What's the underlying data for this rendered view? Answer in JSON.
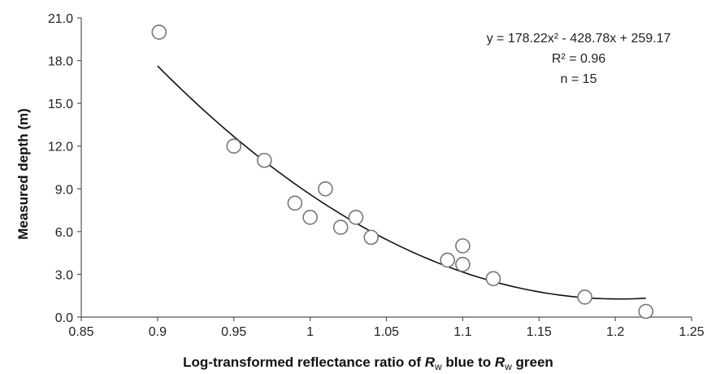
{
  "chart_data": {
    "type": "scatter",
    "title": "",
    "xlabel": {
      "prefix": "Log-transformed reflectance ratio of ",
      "r1": "R",
      "sub1": "w",
      "mid": " blue to ",
      "r2": "R",
      "sub2": "w",
      "suffix": " green"
    },
    "ylabel": "Measured depth (m)",
    "xlim": [
      0.85,
      1.25
    ],
    "ylim": [
      0,
      21
    ],
    "x_ticks": [
      "0.85",
      "0.9",
      "0.95",
      "1",
      "1.05",
      "1.1",
      "1.15",
      "1.2",
      "1.25"
    ],
    "y_ticks": [
      "0.0",
      "3.0",
      "6.0",
      "9.0",
      "12.0",
      "15.0",
      "18.0",
      "21.0"
    ],
    "grid": false,
    "legend": "none",
    "series": [
      {
        "marker": "open-circle",
        "points": [
          {
            "x": 0.901,
            "y": 20.0
          },
          {
            "x": 0.95,
            "y": 12.0
          },
          {
            "x": 0.97,
            "y": 11.0
          },
          {
            "x": 0.99,
            "y": 8.0
          },
          {
            "x": 1.0,
            "y": 7.0
          },
          {
            "x": 1.01,
            "y": 9.0
          },
          {
            "x": 1.02,
            "y": 6.3
          },
          {
            "x": 1.03,
            "y": 7.0
          },
          {
            "x": 1.04,
            "y": 5.6
          },
          {
            "x": 1.09,
            "y": 4.0
          },
          {
            "x": 1.1,
            "y": 5.0
          },
          {
            "x": 1.1,
            "y": 3.7
          },
          {
            "x": 1.12,
            "y": 2.7
          },
          {
            "x": 1.18,
            "y": 1.4
          },
          {
            "x": 1.22,
            "y": 0.4
          }
        ]
      }
    ],
    "trendline": {
      "type": "polynomial",
      "coefficients": {
        "a": 178.22,
        "b": -428.78,
        "c": 259.17
      },
      "x_range": [
        0.9,
        1.22
      ]
    },
    "annotations": {
      "equation": "y = 178.22x² - 428.78x + 259.17",
      "r2": "R² = 0.96",
      "n": "n = 15"
    },
    "colors": {
      "marker_stroke": "#777777",
      "trendline": "#111111",
      "axis": "#555555"
    }
  }
}
